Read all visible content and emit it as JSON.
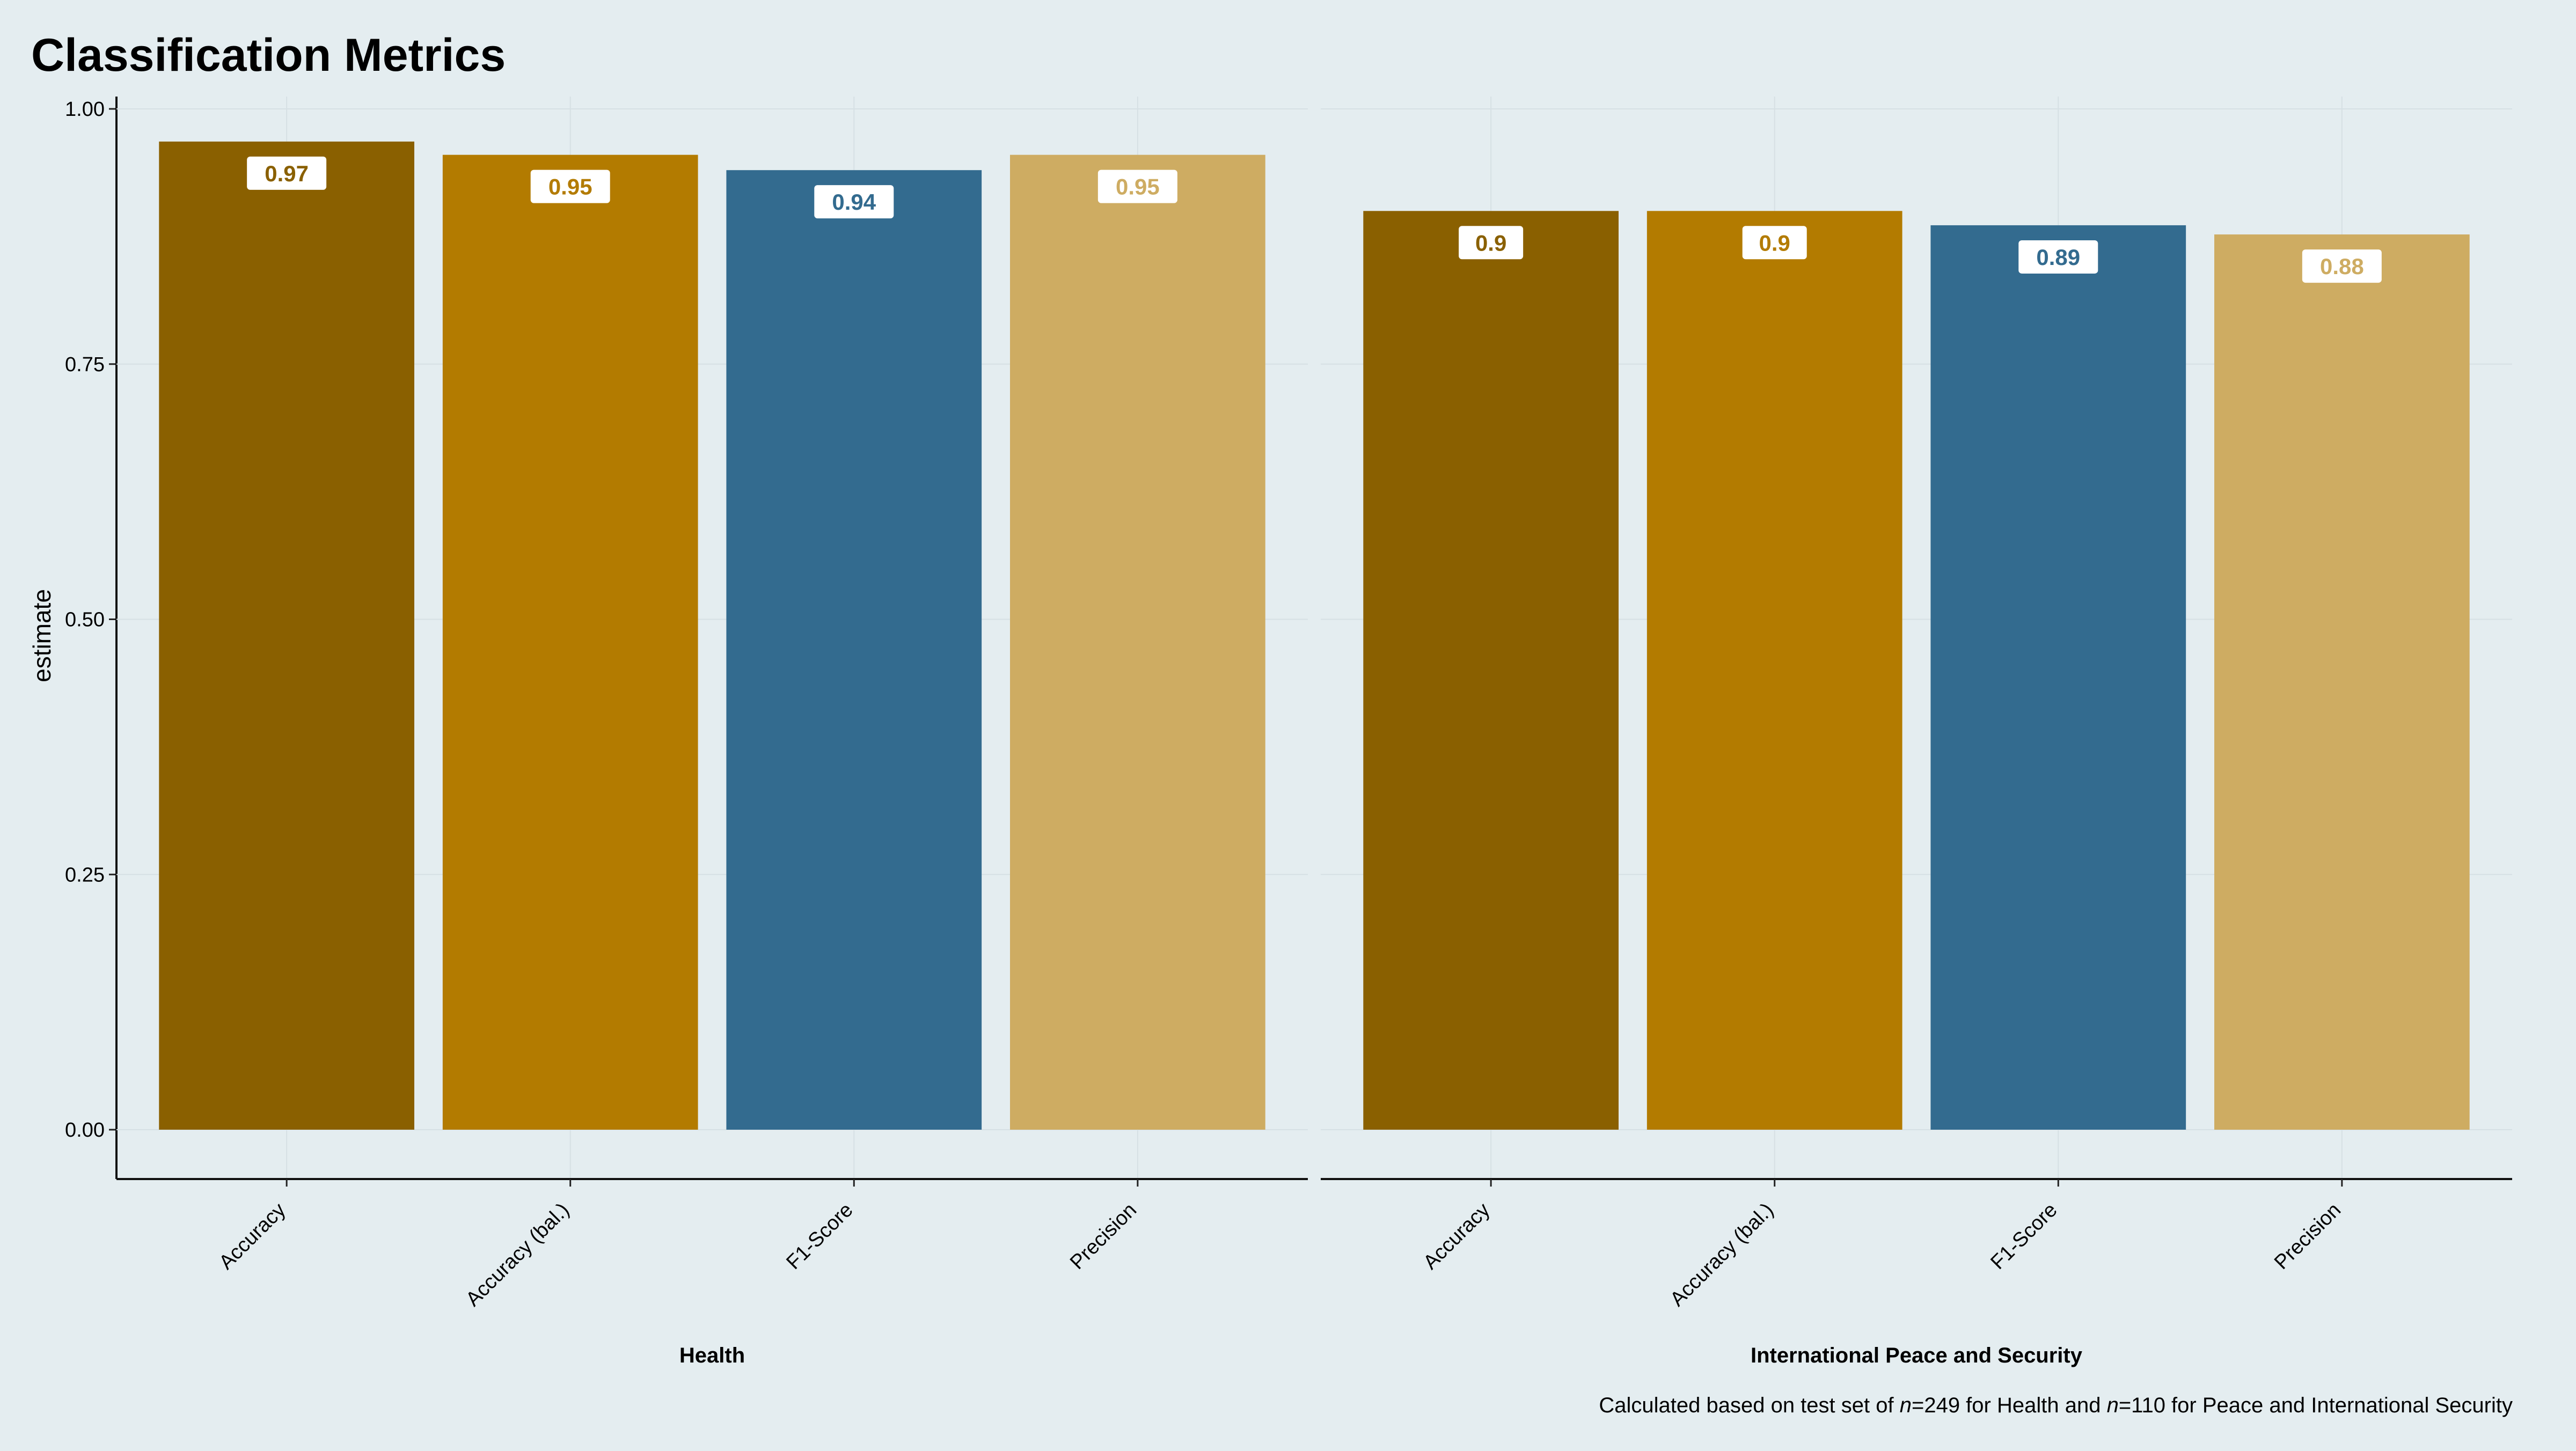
{
  "chart_data": {
    "type": "bar",
    "title": "Classification Metrics",
    "ylabel": "estimate",
    "ylim": [
      0,
      1
    ],
    "yticks": [
      "0.00",
      "0.25",
      "0.50",
      "0.75",
      "1.00"
    ],
    "ytick_values": [
      0,
      0.25,
      0.5,
      0.75,
      1.0
    ],
    "grid": true,
    "categories": [
      "Accuracy",
      "Accuracy (bal.)",
      "F1-Score",
      "Precision"
    ],
    "colors": [
      "#8a6000",
      "#b37b00",
      "#336b8f",
      "#ceac62"
    ],
    "panels": [
      {
        "name": "Health",
        "values": [
          0.968,
          0.955,
          0.94,
          0.955
        ],
        "labels": [
          "0.97",
          "0.95",
          "0.94",
          "0.95"
        ]
      },
      {
        "name": "International Peace and Security",
        "values": [
          0.9,
          0.9,
          0.886,
          0.877
        ],
        "labels": [
          "0.9",
          "0.9",
          "0.89",
          "0.88"
        ]
      }
    ],
    "caption": {
      "prefix": "Calculated based on test set of ",
      "n1_var": "n",
      "n1_rest": "=249 for Health and ",
      "n2_var": "n",
      "n2_rest": "=110 for Peace and International Security"
    }
  }
}
